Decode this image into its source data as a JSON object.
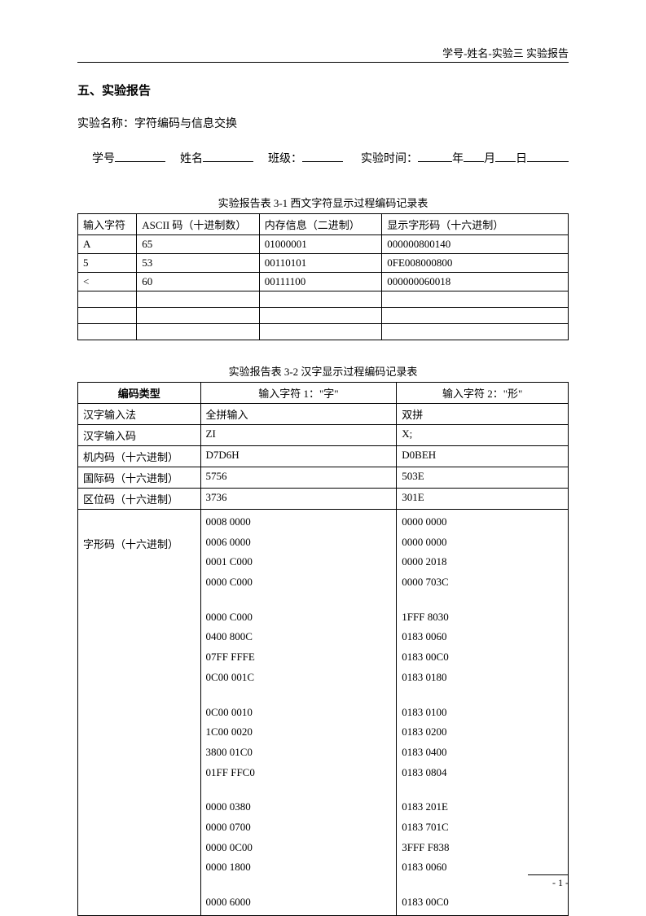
{
  "header_right": "学号-姓名-实验三 实验报告",
  "section_title": "五、实验报告",
  "exp_name_label": "实验名称：",
  "exp_name_value": "字符编码与信息交换",
  "info": {
    "id_label": "学号",
    "name_label": "姓名",
    "class_label": "班级：",
    "time_label": "实验时间：",
    "year": "年",
    "month": "月",
    "day": "日"
  },
  "table1": {
    "caption": "实验报告表 3-1  西文字符显示过程编码记录表",
    "headers": [
      "输入字符",
      "ASCII 码（十进制数）",
      "内存信息（二进制）",
      "显示字形码（十六进制）"
    ],
    "rows": [
      [
        "A",
        "65",
        "01000001",
        "000000800140"
      ],
      [
        "5",
        "53",
        "00110101",
        "0FE008000800"
      ],
      [
        "<",
        "60",
        "00111100",
        "000000060018"
      ],
      [
        "",
        "",
        "",
        ""
      ],
      [
        "",
        "",
        "",
        ""
      ],
      [
        "",
        "",
        "",
        ""
      ]
    ]
  },
  "table2": {
    "caption": "实验报告表 3-2  汉字显示过程编码记录表",
    "headers": [
      "编码类型",
      "输入字符 1：\"字\"",
      "输入字符 2：\"形\""
    ],
    "rows_simple": [
      [
        "汉字输入法",
        "全拼输入",
        "双拼"
      ],
      [
        "汉字输入码",
        "ZI",
        "X;"
      ],
      [
        "机内码（十六进制）",
        "D7D6H",
        "D0BEH"
      ],
      [
        "国际码（十六进制）",
        "5756",
        "503E"
      ],
      [
        "区位码（十六进制）",
        "3736",
        "301E"
      ]
    ],
    "glyph_label": "字形码（十六进制）",
    "glyph_col1": [
      "0008 0000",
      "0006 0000",
      "0001 C000",
      "0000 C000",
      "",
      "0000 C000",
      "0400 800C",
      "07FF FFFE",
      "0C00 001C",
      "",
      "0C00 0010",
      "1C00 0020",
      "3800 01C0",
      "01FF FFC0",
      "",
      "0000 0380",
      "0000 0700",
      "0000 0C00",
      "0000 1800",
      "",
      "0000 6000"
    ],
    "glyph_col2": [
      "0000 0000",
      "0000 0000",
      "0000 2018",
      "0000 703C",
      "",
      "1FFF 8030",
      "0183 0060",
      "0183 00C0",
      "0183 0180",
      "",
      "0183 0100",
      "0183 0200",
      "0183 0400",
      "0183 0804",
      "",
      "0183 201E",
      "0183 701C",
      "3FFF F838",
      "0183 0060",
      "",
      "0183 00C0"
    ]
  },
  "page_number": "- 1 -"
}
